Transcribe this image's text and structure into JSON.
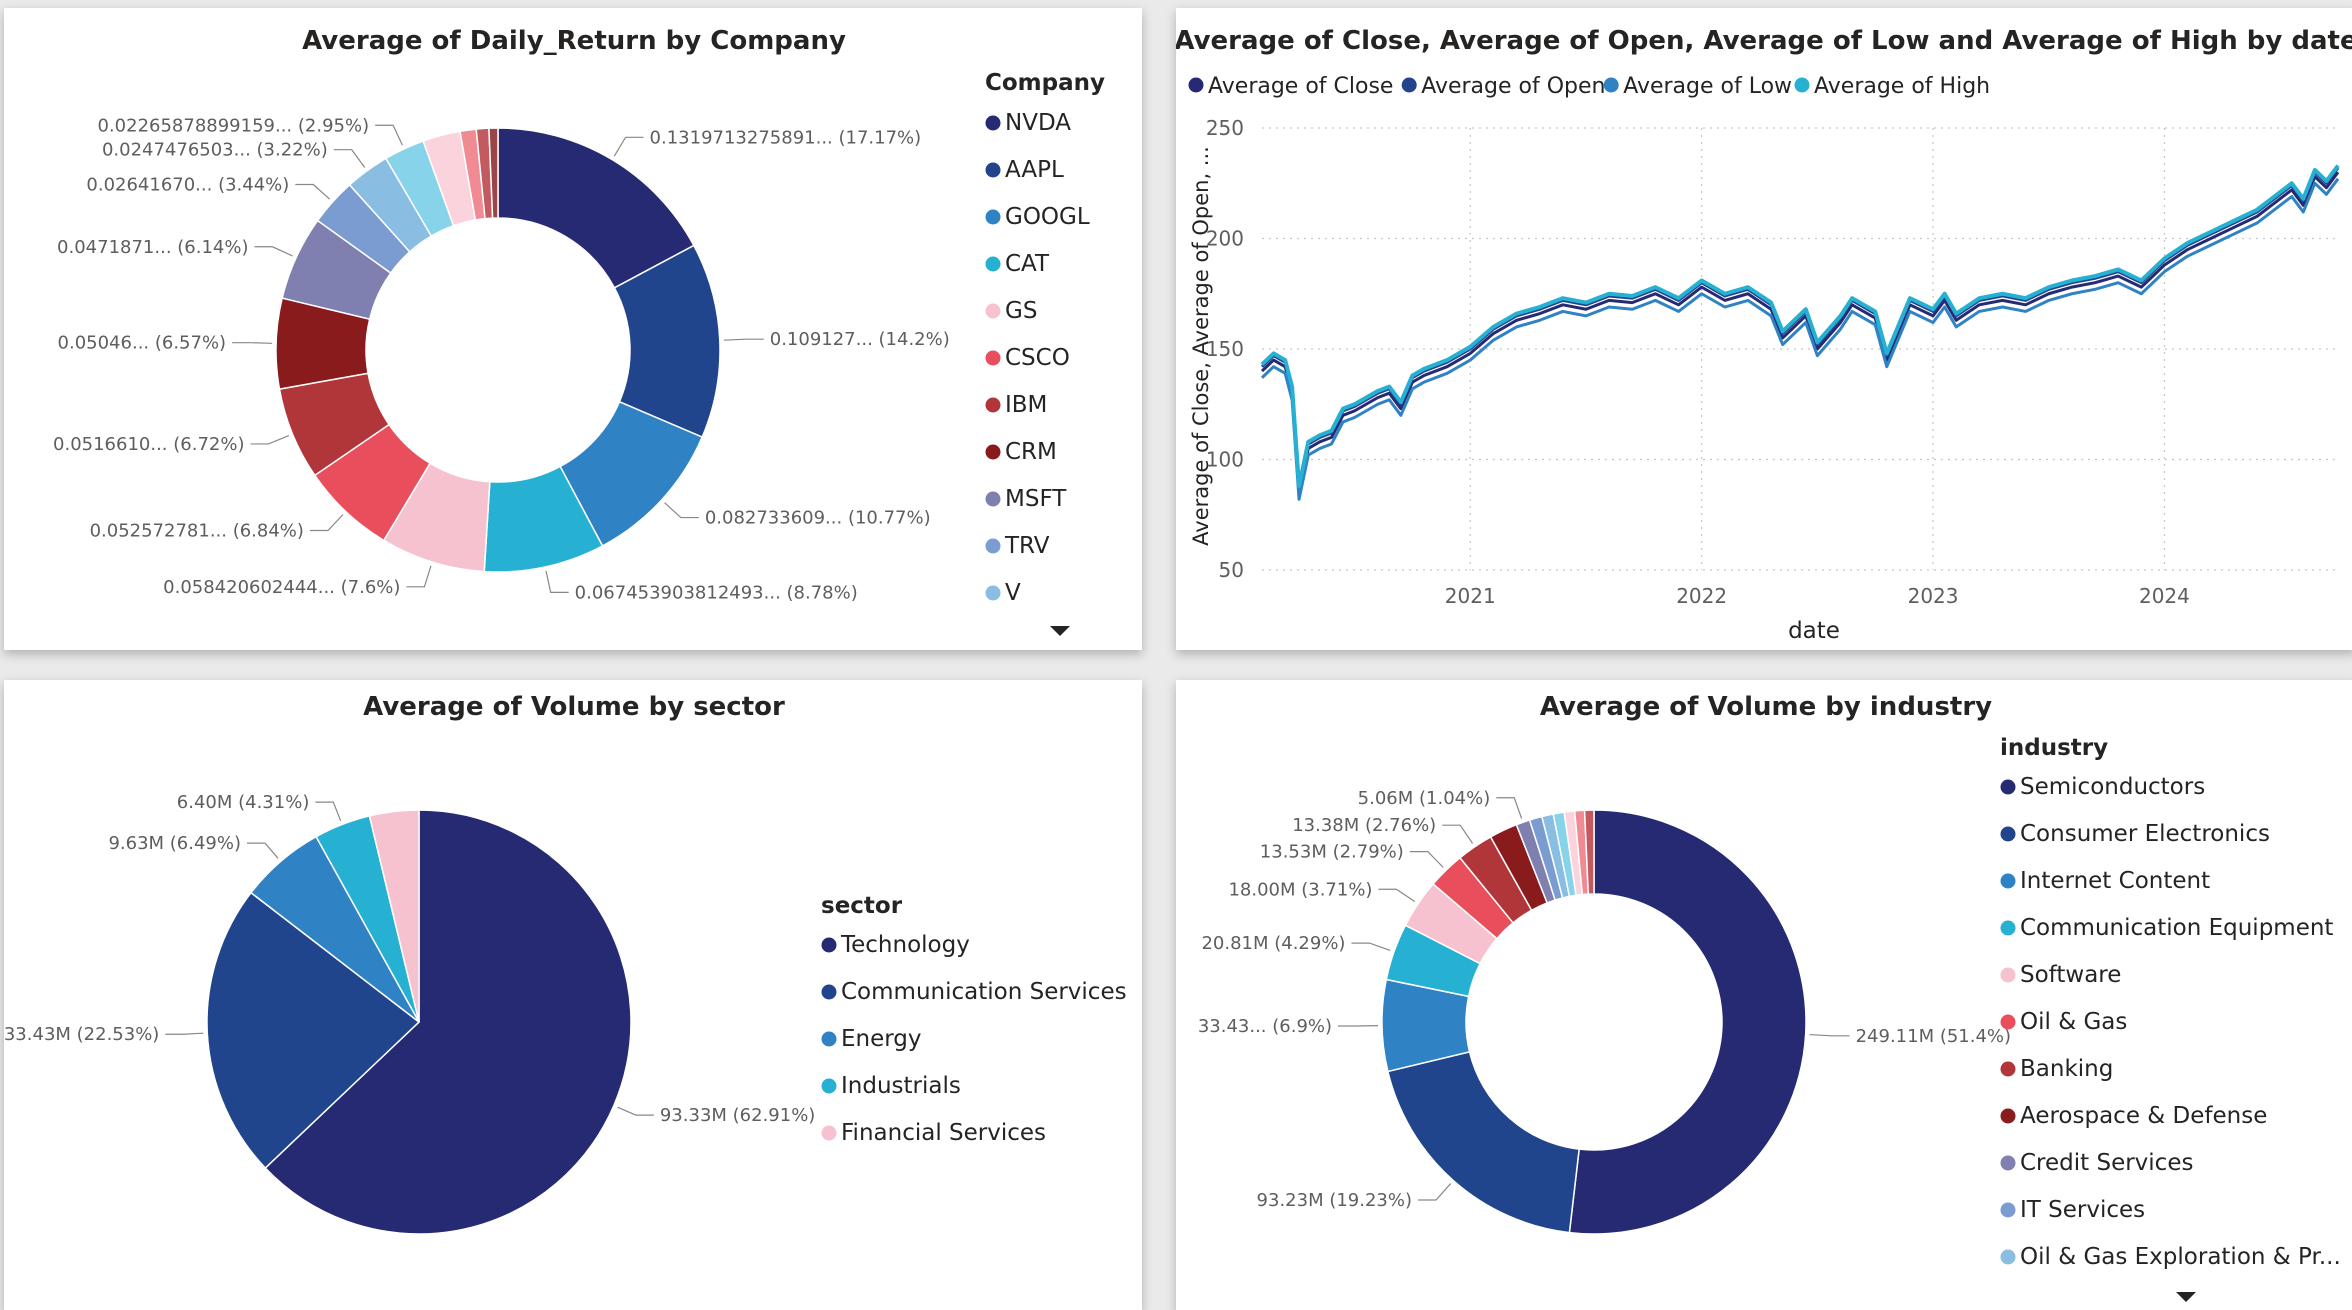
{
  "chart_data": [
    {
      "type": "pie",
      "variant": "donut",
      "title": "Average of Daily_Return by Company",
      "legend_title": "Company",
      "legend_position": "right",
      "legend_items": [
        "NVDA",
        "AAPL",
        "GOOGL",
        "CAT",
        "GS",
        "CSCO",
        "IBM",
        "CRM",
        "MSFT",
        "TRV",
        "V"
      ],
      "slices": [
        {
          "name": "NVDA",
          "value": 0.1319713275891,
          "label": "0.1319713275891... (17.17%)",
          "color": "#252a72"
        },
        {
          "name": "AAPL",
          "value": 0.109127,
          "label": "0.109127... (14.2%)",
          "color": "#21458d"
        },
        {
          "name": "GOOGL",
          "value": 0.082733609,
          "label": "0.082733609... (10.77%)",
          "color": "#2f82c4"
        },
        {
          "name": "CAT",
          "value": 0.067453903812493,
          "label": "0.067453903812493... (8.78%)",
          "color": "#26b1d2"
        },
        {
          "name": "GS",
          "value": 0.058420602444,
          "label": "0.058420602444... (7.6%)",
          "color": "#f7c2d0"
        },
        {
          "name": "CSCO",
          "value": 0.052572781,
          "label": "0.052572781... (6.84%)",
          "color": "#e84e5b"
        },
        {
          "name": "IBM",
          "value": 0.051661,
          "label": "0.0516610... (6.72%)",
          "color": "#b0363a"
        },
        {
          "name": "CRM",
          "value": 0.05046,
          "label": "0.05046... (6.57%)",
          "color": "#8a1b1d"
        },
        {
          "name": "MSFT",
          "value": 0.0471871,
          "label": "0.0471871... (6.14%)",
          "color": "#7f7fb0"
        },
        {
          "name": "TRV",
          "value": 0.0264167,
          "label": "0.02641670... (3.44%)",
          "color": "#7b9cd0"
        },
        {
          "name": "V",
          "value": 0.0247476503,
          "label": "0.0247476503... (3.22%)",
          "color": "#89bde2"
        },
        {
          "name": "",
          "value": 0.02265878899159,
          "label": "0.02265878899159... (2.95%)",
          "color": "#86d3ea"
        },
        {
          "name": "",
          "value": 0.021,
          "label": "",
          "color": "#fbd3dd"
        },
        {
          "name": "",
          "value": 0.009,
          "label": "",
          "color": "#f08a93"
        },
        {
          "name": "",
          "value": 0.007,
          "label": "",
          "color": "#c25a5f"
        },
        {
          "name": "",
          "value": 0.005,
          "label": "",
          "color": "#9a4547"
        }
      ]
    },
    {
      "type": "line",
      "title": "Average of Close, Average of Open, Average of Low and Average of High by date",
      "xlabel": "date",
      "ylabel": "Average of Close, Average of Open, ...",
      "legend_position": "top-left",
      "xlim": [
        2020.1,
        2024.75
      ],
      "ylim": [
        50,
        250
      ],
      "yticks": [
        50,
        100,
        150,
        200,
        250
      ],
      "xticks": [
        {
          "value": 2021,
          "label": "2021"
        },
        {
          "value": 2022,
          "label": "2022"
        },
        {
          "value": 2023,
          "label": "2023"
        },
        {
          "value": 2024,
          "label": "2024"
        }
      ],
      "grid": true,
      "series": [
        {
          "name": "Average of Close",
          "color": "#252a72"
        },
        {
          "name": "Average of Open",
          "color": "#21458d"
        },
        {
          "name": "Average of Low",
          "color": "#2f82c4"
        },
        {
          "name": "Average of High",
          "color": "#26b1d2"
        }
      ],
      "x": [
        2020.1,
        2020.15,
        2020.2,
        2020.23,
        2020.26,
        2020.3,
        2020.35,
        2020.4,
        2020.45,
        2020.5,
        2020.55,
        2020.6,
        2020.65,
        2020.7,
        2020.75,
        2020.8,
        2020.9,
        2021.0,
        2021.1,
        2021.2,
        2021.3,
        2021.4,
        2021.5,
        2021.6,
        2021.7,
        2021.8,
        2021.9,
        2022.0,
        2022.1,
        2022.2,
        2022.3,
        2022.35,
        2022.45,
        2022.5,
        2022.6,
        2022.65,
        2022.75,
        2022.8,
        2022.9,
        2023.0,
        2023.05,
        2023.1,
        2023.2,
        2023.3,
        2023.4,
        2023.5,
        2023.6,
        2023.7,
        2023.8,
        2023.9,
        2024.0,
        2024.1,
        2024.2,
        2024.3,
        2024.4,
        2024.5,
        2024.55,
        2024.6,
        2024.65,
        2024.7,
        2024.75
      ],
      "y": [
        140,
        145,
        142,
        130,
        85,
        105,
        108,
        110,
        120,
        122,
        125,
        128,
        130,
        123,
        135,
        138,
        142,
        148,
        157,
        163,
        166,
        170,
        168,
        172,
        171,
        175,
        170,
        178,
        172,
        175,
        168,
        155,
        165,
        150,
        162,
        170,
        164,
        145,
        170,
        165,
        172,
        163,
        170,
        172,
        170,
        175,
        178,
        180,
        183,
        178,
        188,
        195,
        200,
        205,
        210,
        218,
        222,
        215,
        228,
        223,
        230
      ]
    },
    {
      "type": "pie",
      "title": "Average of Volume by sector",
      "legend_title": "sector",
      "legend_position": "right",
      "slices": [
        {
          "name": "Technology",
          "value": 93.33,
          "label": "93.33M (62.91%)",
          "color": "#252a72"
        },
        {
          "name": "Communication Services",
          "value": 33.43,
          "label": "33.43M (22.53%)",
          "color": "#21458d"
        },
        {
          "name": "Energy",
          "value": 9.63,
          "label": "9.63M (6.49%)",
          "color": "#2f82c4"
        },
        {
          "name": "Industrials",
          "value": 6.4,
          "label": "6.40M (4.31%)",
          "color": "#26b1d2"
        },
        {
          "name": "Financial Services",
          "value": 5.57,
          "label": "",
          "color": "#f7c2d0"
        }
      ]
    },
    {
      "type": "pie",
      "variant": "donut",
      "title": "Average of Volume by industry",
      "legend_title": "industry",
      "legend_position": "right",
      "legend_items": [
        "Semiconductors",
        "Consumer Electronics",
        "Internet Content",
        "Communication Equipment",
        "Software",
        "Oil & Gas",
        "Banking",
        "Aerospace & Defense",
        "Credit Services",
        "IT Services",
        "Oil & Gas Exploration & Pr..."
      ],
      "slices": [
        {
          "name": "Semiconductors",
          "value": 249.11,
          "label": "249.11M (51.4%)",
          "color": "#252a72"
        },
        {
          "name": "Consumer Electronics",
          "value": 93.23,
          "label": "93.23M (19.23%)",
          "color": "#21458d"
        },
        {
          "name": "Internet Content",
          "value": 33.43,
          "label": "33.43... (6.9%)",
          "color": "#2f82c4"
        },
        {
          "name": "Communication Equipment",
          "value": 20.81,
          "label": "20.81M (4.29%)",
          "color": "#26b1d2"
        },
        {
          "name": "Software",
          "value": 18.0,
          "label": "18.00M (3.71%)",
          "color": "#f7c2d0"
        },
        {
          "name": "Oil & Gas",
          "value": 13.53,
          "label": "13.53M (2.79%)",
          "color": "#e84e5b"
        },
        {
          "name": "Banking",
          "value": 13.38,
          "label": "13.38M (2.76%)",
          "color": "#b0363a"
        },
        {
          "name": "Aerospace & Defense",
          "value": 10.3,
          "label": "",
          "color": "#8a1b1d"
        },
        {
          "name": "Credit Services",
          "value": 5.06,
          "label": "5.06M (1.04%)",
          "color": "#7f7fb0"
        },
        {
          "name": "IT Services",
          "value": 4.6,
          "label": "",
          "color": "#7b9cd0"
        },
        {
          "name": "Oil & Gas Exploration & Pr...",
          "value": 4.2,
          "label": "",
          "color": "#89bde2"
        },
        {
          "name": "",
          "value": 4.0,
          "label": "",
          "color": "#86d3ea"
        },
        {
          "name": "",
          "value": 3.8,
          "label": "",
          "color": "#fbd3dd"
        },
        {
          "name": "",
          "value": 3.6,
          "label": "",
          "color": "#f08a93"
        },
        {
          "name": "",
          "value": 3.4,
          "label": "",
          "color": "#c25a5f"
        }
      ]
    }
  ]
}
